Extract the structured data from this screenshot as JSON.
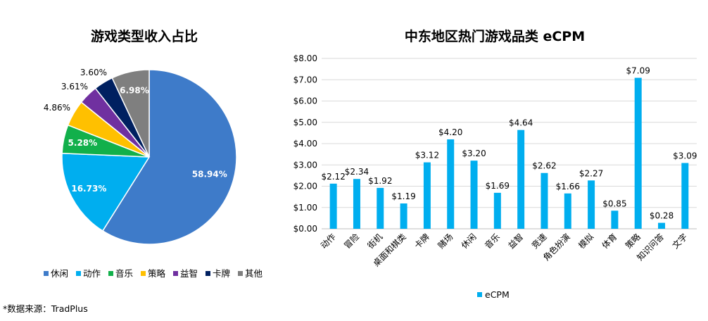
{
  "chart_data": [
    {
      "type": "pie",
      "title": "游戏类型收入占比",
      "categories": [
        "休闲",
        "动作",
        "音乐",
        "策略",
        "益智",
        "卡牌",
        "其他"
      ],
      "values": [
        58.94,
        16.73,
        5.28,
        4.86,
        3.61,
        3.6,
        6.98
      ],
      "value_labels": [
        "58.94%",
        "16.73%",
        "5.28%",
        "4.86%",
        "3.61%",
        "3.60%",
        "6.98%"
      ],
      "colors": [
        "#3E7BC9",
        "#00AEEF",
        "#12B04B",
        "#FFC000",
        "#7030A0",
        "#002060",
        "#7F7F7F"
      ],
      "legend_position": "bottom"
    },
    {
      "type": "bar",
      "title": "中东地区热门游戏品类 eCPM",
      "categories": [
        "动作",
        "冒险",
        "街机",
        "桌面和棋类",
        "卡牌",
        "赌场",
        "休闲",
        "音乐",
        "益智",
        "竞速",
        "角色扮演",
        "模拟",
        "体育",
        "策略",
        "知识问答",
        "文字"
      ],
      "series": [
        {
          "name": "eCPM",
          "values": [
            2.12,
            2.34,
            1.92,
            1.19,
            3.12,
            4.2,
            3.2,
            1.69,
            4.64,
            2.62,
            1.66,
            2.27,
            0.85,
            7.09,
            0.28,
            3.09
          ],
          "value_labels": [
            "$2.12",
            "$2.34",
            "$1.92",
            "$1.19",
            "$3.12",
            "$4.20",
            "$3.20",
            "$1.69",
            "$4.64",
            "$2.62",
            "$1.66",
            "$2.27",
            "$0.85",
            "$7.09",
            "$0.28",
            "$3.09"
          ]
        }
      ],
      "ylim": [
        0,
        8
      ],
      "y_ticks": [
        "$0.00",
        "$1.00",
        "$2.00",
        "$3.00",
        "$4.00",
        "$5.00",
        "$6.00",
        "$7.00",
        "$8.00"
      ],
      "grid": true,
      "color": "#00AEEF",
      "legend_position": "bottom"
    }
  ],
  "source_note": "*数据来源：TradPlus"
}
